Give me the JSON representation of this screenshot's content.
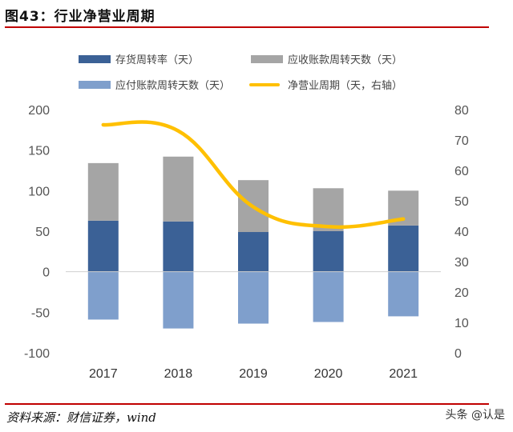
{
  "header": {
    "title": "图43：行业净营业周期"
  },
  "footer": {
    "source": "资料来源：财信证券，wind",
    "watermark": "头条 @认是"
  },
  "colors": {
    "inventory": "#3b6196",
    "receivable": "#a5a5a5",
    "payable": "#7f9fcc",
    "cycle": "#ffc000",
    "rule": "#c00000"
  },
  "chart_data": {
    "type": "bar",
    "title": "行业净营业周期",
    "categories": [
      "2017",
      "2018",
      "2019",
      "2020",
      "2021"
    ],
    "series": [
      {
        "name": "存货周转率（天）",
        "kind": "bar",
        "axis": "left",
        "stack_base": 0,
        "values": [
          63,
          62,
          49,
          50,
          57
        ]
      },
      {
        "name": "应收账款周转天数（天）",
        "kind": "bar",
        "axis": "left",
        "stack_on": "存货周转率（天）",
        "values": [
          71,
          80,
          64,
          53,
          43
        ]
      },
      {
        "name": "应付账款周转天数（天）",
        "kind": "bar",
        "axis": "left",
        "stack_base": 0,
        "values": [
          -59,
          -70,
          -64,
          -62,
          -55
        ]
      },
      {
        "name": "净营业周期（天，右轴）",
        "kind": "line",
        "axis": "right",
        "values": [
          75,
          73,
          48,
          41.5,
          44
        ]
      }
    ],
    "left_axis": {
      "min": -100,
      "max": 200,
      "ticks": [
        200,
        150,
        100,
        50,
        0,
        -50,
        -100
      ]
    },
    "right_axis": {
      "min": 0,
      "max": 80,
      "ticks": [
        80,
        70,
        60,
        50,
        40,
        30,
        20,
        10,
        0
      ]
    },
    "legend": [
      {
        "label": "存货周转率（天）",
        "type": "bar"
      },
      {
        "label": "应收账款周转天数（天）",
        "type": "bar"
      },
      {
        "label": "应付账款周转天数（天）",
        "type": "bar"
      },
      {
        "label": "净营业周期（天，右轴）",
        "type": "line"
      }
    ],
    "legend_position": "top",
    "grid": false
  }
}
